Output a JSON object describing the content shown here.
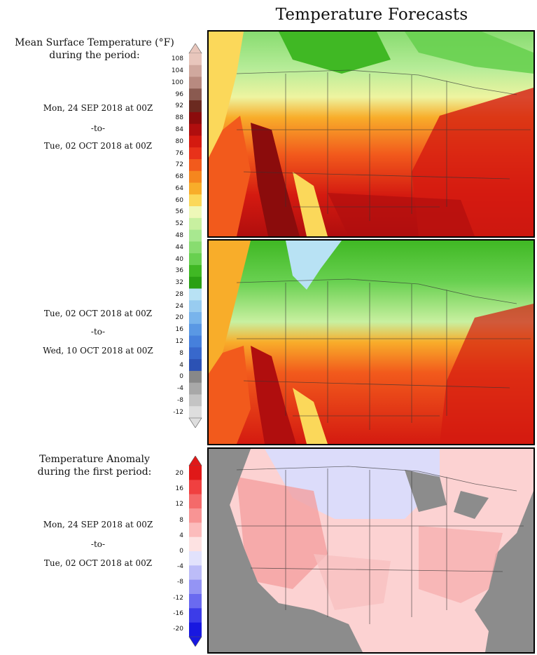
{
  "title": "Temperature Forecasts",
  "mean_label_line1": "Mean Surface Temperature (°F)",
  "mean_label_line2": "during the period:",
  "period1": {
    "start": "Mon, 24 SEP 2018 at 00Z",
    "sep": "-to-",
    "end": "Tue, 02 OCT 2018 at 00Z"
  },
  "period2": {
    "start": "Tue, 02 OCT 2018 at 00Z",
    "sep": "-to-",
    "end": "Wed, 10 OCT 2018 at 00Z"
  },
  "anomaly_label_line1": "Temperature Anomaly",
  "anomaly_label_line2": "during the first period:",
  "period3": {
    "start": "Mon, 24 SEP 2018 at 00Z",
    "sep": "-to-",
    "end": "Tue, 02 OCT 2018 at 00Z"
  },
  "temp_scale": {
    "ticks": [
      "108",
      "104",
      "100",
      "96",
      "92",
      "88",
      "84",
      "80",
      "76",
      "72",
      "68",
      "64",
      "60",
      "56",
      "52",
      "48",
      "44",
      "40",
      "36",
      "32",
      "28",
      "24",
      "20",
      "16",
      "12",
      "8",
      "4",
      "0",
      "-4",
      "-8",
      "-12"
    ],
    "colors": [
      "#e8c6bc",
      "#d0a89e",
      "#b88a80",
      "#8a5a50",
      "#6b2a20",
      "#8b0c0c",
      "#b00e0e",
      "#d41a10",
      "#e8321a",
      "#f25a1c",
      "#f5861e",
      "#f8ad2a",
      "#fbd85a",
      "#eef8b8",
      "#c8f0a0",
      "#a8e890",
      "#88dc70",
      "#68d050",
      "#40b824",
      "#2aa014",
      "#b8e2f4",
      "#98ccf0",
      "#78b4ec",
      "#5a98e4",
      "#4680dc",
      "#3868cc",
      "#2c52b4",
      "#888888",
      "#a8a8a8",
      "#c4c4c4",
      "#dedede"
    ]
  },
  "anom_scale": {
    "ticks": [
      "20",
      "16",
      "12",
      "8",
      "4",
      "0",
      "-4",
      "-8",
      "-12",
      "-16",
      "-20"
    ],
    "colors": [
      "#e01818",
      "#f04040",
      "#f46a6a",
      "#f89494",
      "#fcbcbc",
      "#fde2e2",
      "#e2e2fc",
      "#bcbcf8",
      "#9494f4",
      "#6a6af0",
      "#3c3ce8",
      "#1818e0"
    ]
  },
  "colors": {
    "land_grey": "#8c8c8c",
    "water": "#ffffff"
  }
}
